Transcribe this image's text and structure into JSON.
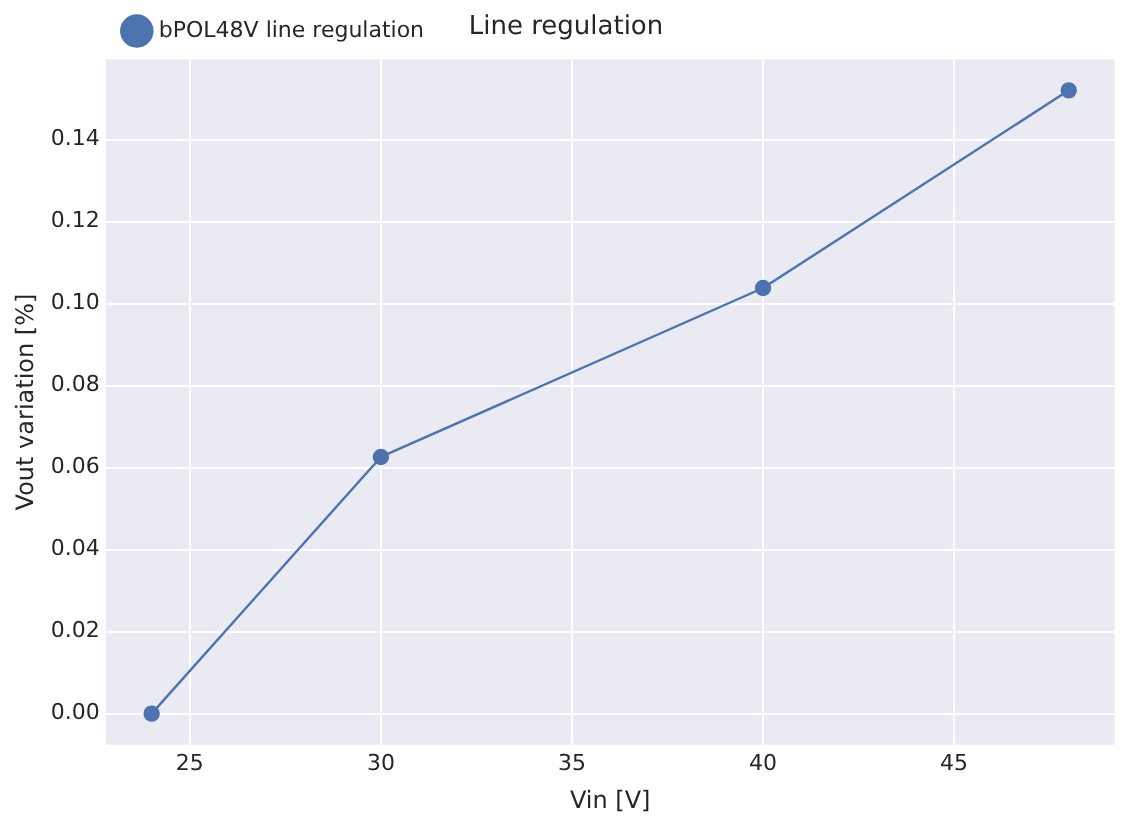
{
  "chart_data": {
    "type": "line",
    "title": "Line regulation",
    "xlabel": "Vin [V]",
    "ylabel": "Vout variation [%]",
    "x": [
      24,
      30,
      40,
      48
    ],
    "series": [
      {
        "name": "bPOL48V line regulation",
        "color": "#4c72b0",
        "values": [
          0.0,
          0.0626,
          0.1038,
          0.152
        ]
      }
    ],
    "xlim": [
      22.8,
      49.2
    ],
    "xticks": [
      25,
      30,
      35,
      40,
      45
    ],
    "ylim": [
      -0.0076,
      0.1596
    ],
    "yticks": [
      {
        "value": 0,
        "label": "0.00"
      },
      {
        "value": 0.02,
        "label": "0.02"
      },
      {
        "value": 0.04,
        "label": "0.04"
      },
      {
        "value": 0.06,
        "label": "0.06"
      },
      {
        "value": 0.08,
        "label": "0.08"
      },
      {
        "value": 0.1,
        "label": "0.10"
      },
      {
        "value": 0.12,
        "label": "0.12"
      },
      {
        "value": 0.14,
        "label": "0.14"
      }
    ],
    "grid": true,
    "legend": "top left",
    "marker": "circle",
    "line_style": "solid"
  }
}
